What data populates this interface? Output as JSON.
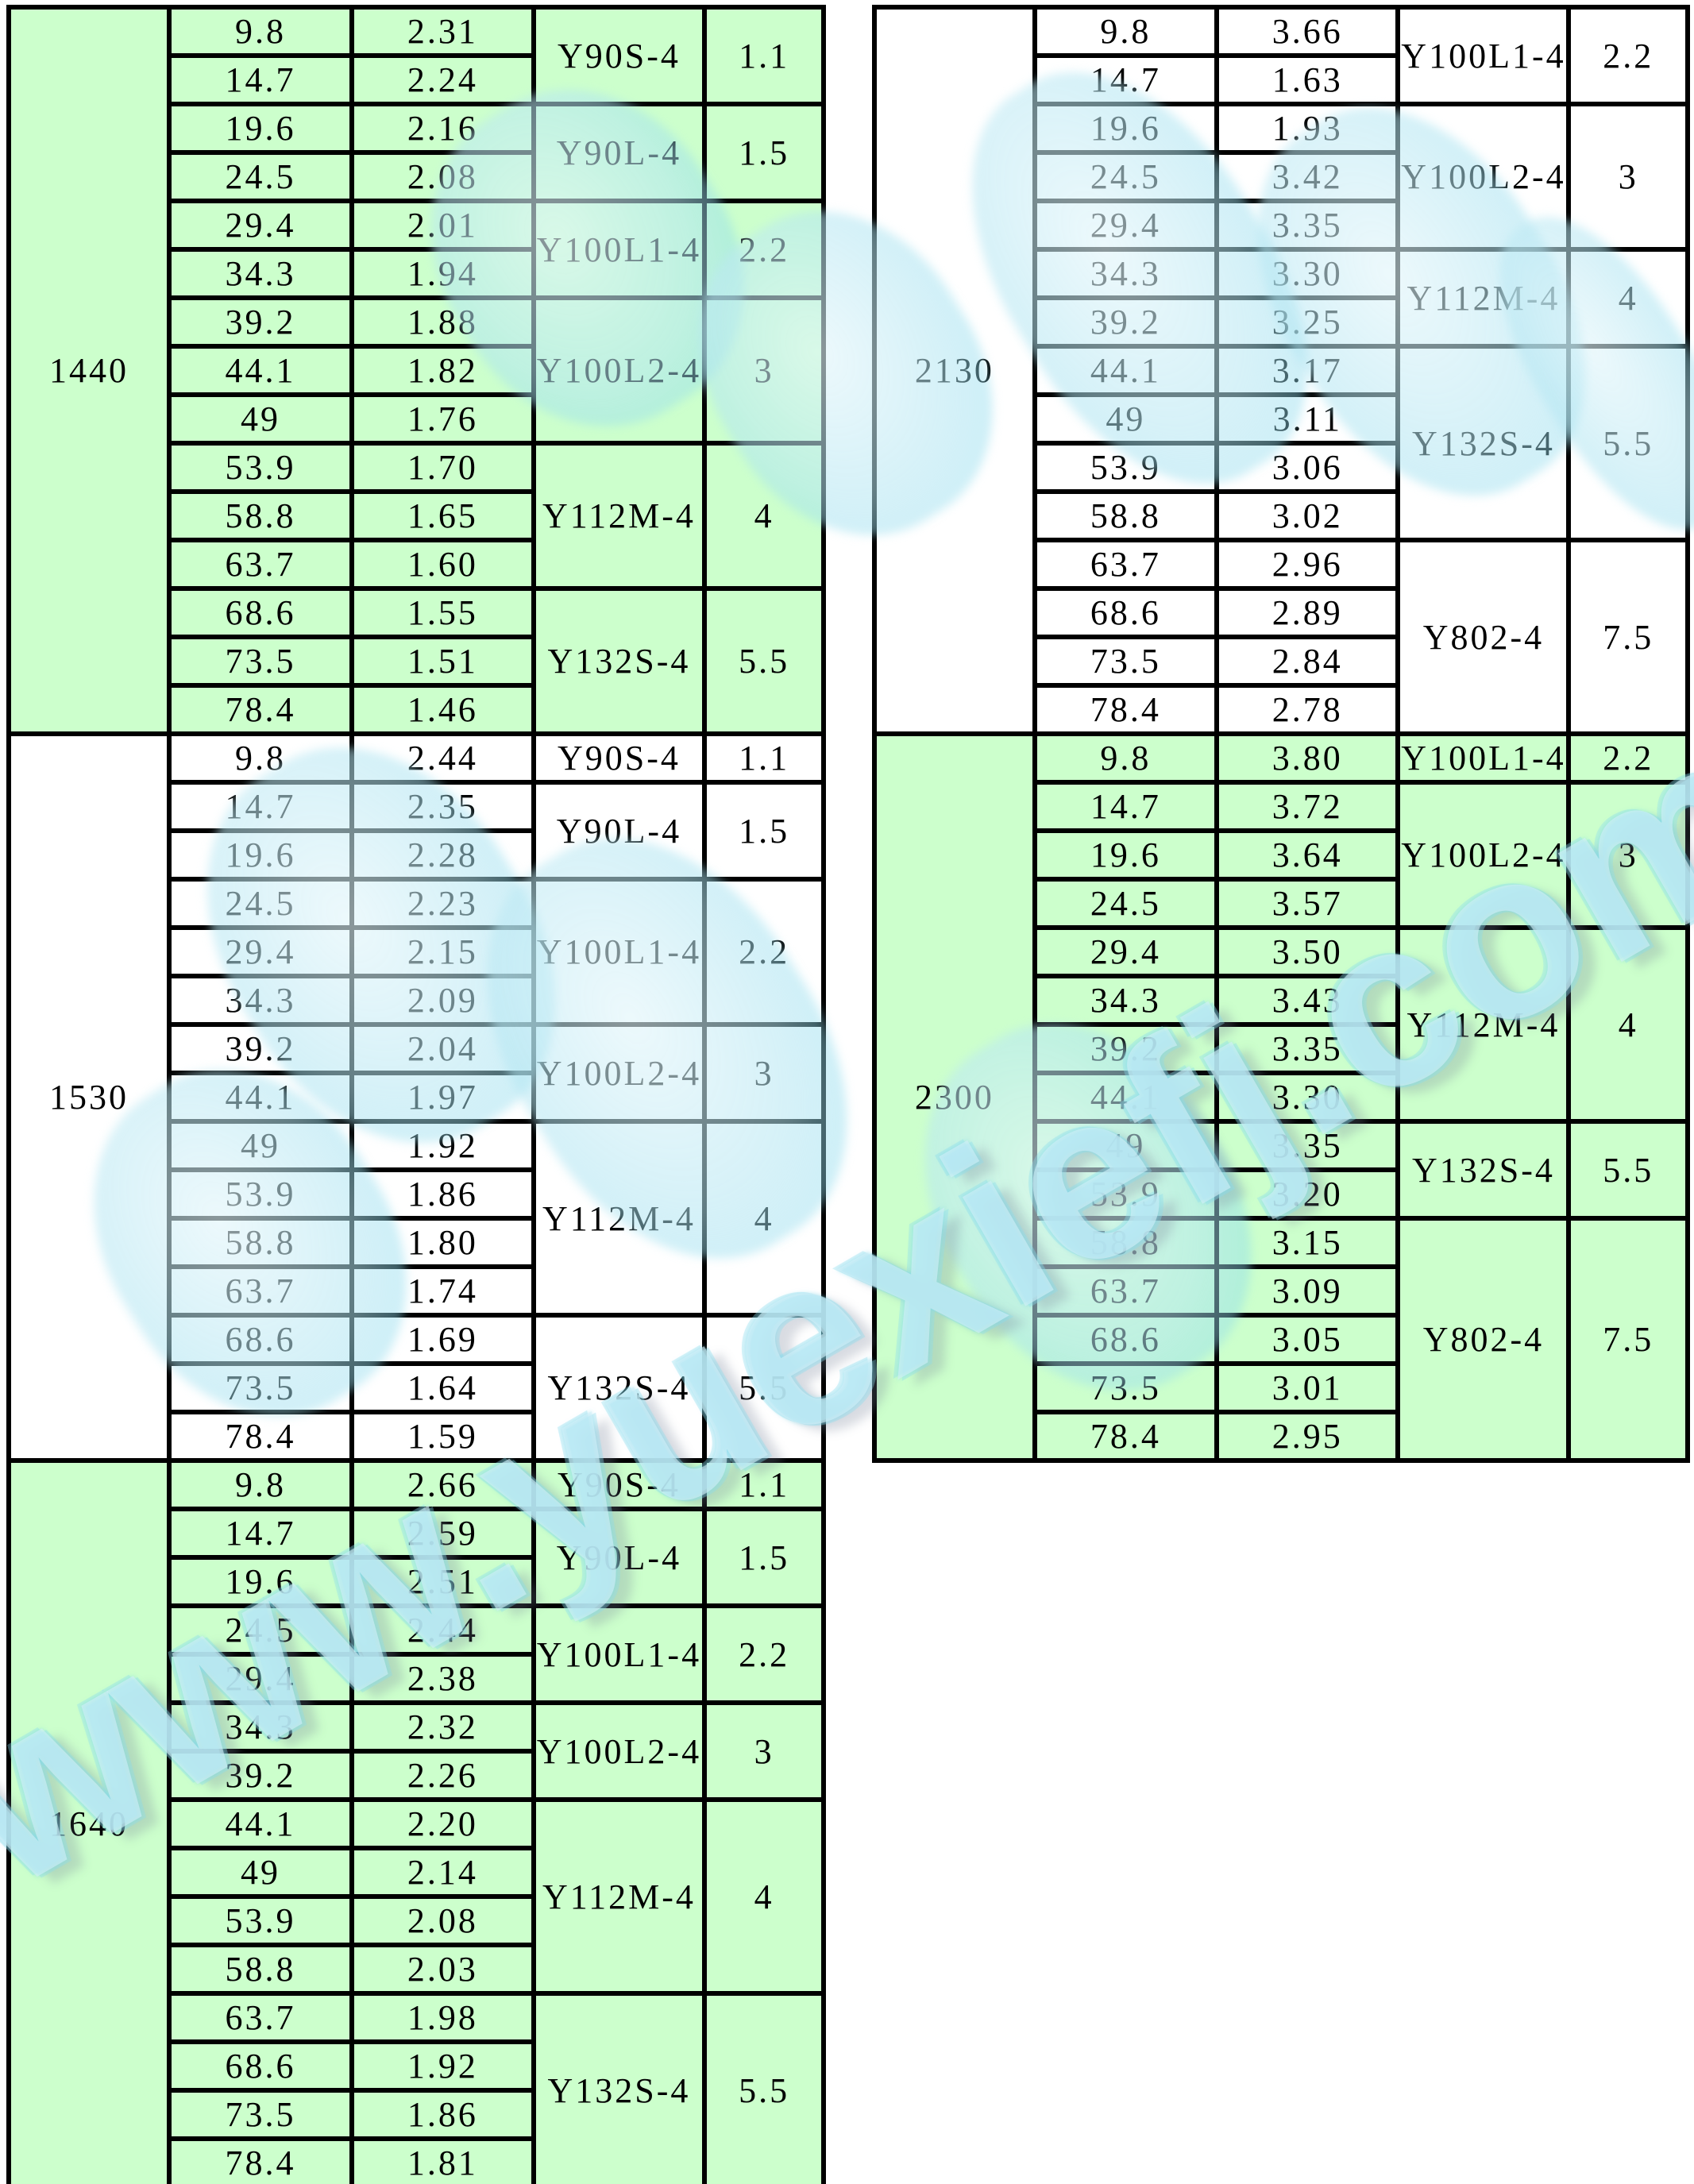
{
  "watermark": {
    "url_text": "www.yuexiefj.com",
    "color": "#7fd7e9"
  },
  "colors": {
    "green_fill": "#ccffcc",
    "white_fill": "#ffffff",
    "border": "#000000"
  },
  "column_fractions": [
    19.7,
    22.4,
    22.3,
    21.0,
    14.6
  ],
  "tables": [
    {
      "group_label": "1440",
      "column": "left",
      "background": "green",
      "rows": [
        [
          "9.8",
          "2.31"
        ],
        [
          "14.7",
          "2.24"
        ],
        [
          "19.6",
          "2.16"
        ],
        [
          "24.5",
          "2.08"
        ],
        [
          "29.4",
          "2.01"
        ],
        [
          "34.3",
          "1.94"
        ],
        [
          "39.2",
          "1.88"
        ],
        [
          "44.1",
          "1.82"
        ],
        [
          "49",
          "1.76"
        ],
        [
          "53.9",
          "1.70"
        ],
        [
          "58.8",
          "1.65"
        ],
        [
          "63.7",
          "1.60"
        ],
        [
          "68.6",
          "1.55"
        ],
        [
          "73.5",
          "1.51"
        ],
        [
          "78.4",
          "1.46"
        ]
      ],
      "motor_groups": [
        {
          "model": "Y90S-4",
          "power": "1.1",
          "rows": 2
        },
        {
          "model": "Y90L-4",
          "power": "1.5",
          "rows": 2
        },
        {
          "model": "Y100L1-4",
          "power": "2.2",
          "rows": 2
        },
        {
          "model": "Y100L2-4",
          "power": "3",
          "rows": 3
        },
        {
          "model": "Y112M-4",
          "power": "4",
          "rows": 3
        },
        {
          "model": "Y132S-4",
          "power": "5.5",
          "rows": 3
        }
      ]
    },
    {
      "group_label": "1530",
      "column": "left",
      "background": "white",
      "rows": [
        [
          "9.8",
          "2.44"
        ],
        [
          "14.7",
          "2.35"
        ],
        [
          "19.6",
          "2.28"
        ],
        [
          "24.5",
          "2.23"
        ],
        [
          "29.4",
          "2.15"
        ],
        [
          "34.3",
          "2.09"
        ],
        [
          "39.2",
          "2.04"
        ],
        [
          "44.1",
          "1.97"
        ],
        [
          "49",
          "1.92"
        ],
        [
          "53.9",
          "1.86"
        ],
        [
          "58.8",
          "1.80"
        ],
        [
          "63.7",
          "1.74"
        ],
        [
          "68.6",
          "1.69"
        ],
        [
          "73.5",
          "1.64"
        ],
        [
          "78.4",
          "1.59"
        ]
      ],
      "motor_groups": [
        {
          "model": "Y90S-4",
          "power": "1.1",
          "rows": 1
        },
        {
          "model": "Y90L-4",
          "power": "1.5",
          "rows": 2
        },
        {
          "model": "Y100L1-4",
          "power": "2.2",
          "rows": 3
        },
        {
          "model": "Y100L2-4",
          "power": "3",
          "rows": 2
        },
        {
          "model": "Y112M-4",
          "power": "4",
          "rows": 4
        },
        {
          "model": "Y132S-4",
          "power": "5.5",
          "rows": 3
        }
      ]
    },
    {
      "group_label": "1640",
      "column": "left",
      "background": "green",
      "rows": [
        [
          "9.8",
          "2.66"
        ],
        [
          "14.7",
          "2.59"
        ],
        [
          "19.6",
          "2.51"
        ],
        [
          "24.5",
          "2.44"
        ],
        [
          "29.4",
          "2.38"
        ],
        [
          "34.3",
          "2.32"
        ],
        [
          "39.2",
          "2.26"
        ],
        [
          "44.1",
          "2.20"
        ],
        [
          "49",
          "2.14"
        ],
        [
          "53.9",
          "2.08"
        ],
        [
          "58.8",
          "2.03"
        ],
        [
          "63.7",
          "1.98"
        ],
        [
          "68.6",
          "1.92"
        ],
        [
          "73.5",
          "1.86"
        ],
        [
          "78.4",
          "1.81"
        ]
      ],
      "motor_groups": [
        {
          "model": "Y90S-4",
          "power": "1.1",
          "rows": 1
        },
        {
          "model": "Y90L-4",
          "power": "1.5",
          "rows": 2
        },
        {
          "model": "Y100L1-4",
          "power": "2.2",
          "rows": 2
        },
        {
          "model": "Y100L2-4",
          "power": "3",
          "rows": 2
        },
        {
          "model": "Y112M-4",
          "power": "4",
          "rows": 4
        },
        {
          "model": "Y132S-4",
          "power": "5.5",
          "rows": 4
        }
      ]
    },
    {
      "group_label": "2130",
      "column": "right",
      "background": "white",
      "rows": [
        [
          "9.8",
          "3.66"
        ],
        [
          "14.7",
          "1.63"
        ],
        [
          "19.6",
          "1.93"
        ],
        [
          "24.5",
          "3.42"
        ],
        [
          "29.4",
          "3.35"
        ],
        [
          "34.3",
          "3.30"
        ],
        [
          "39.2",
          "3.25"
        ],
        [
          "44.1",
          "3.17"
        ],
        [
          "49",
          "3.11"
        ],
        [
          "53.9",
          "3.06"
        ],
        [
          "58.8",
          "3.02"
        ],
        [
          "63.7",
          "2.96"
        ],
        [
          "68.6",
          "2.89"
        ],
        [
          "73.5",
          "2.84"
        ],
        [
          "78.4",
          "2.78"
        ]
      ],
      "motor_groups": [
        {
          "model": "Y100L1-4",
          "power": "2.2",
          "rows": 2
        },
        {
          "model": "Y100L2-4",
          "power": "3",
          "rows": 3
        },
        {
          "model": "Y112M-4",
          "power": "4",
          "rows": 2
        },
        {
          "model": "Y132S-4",
          "power": "5.5",
          "rows": 4
        },
        {
          "model": "Y802-4",
          "power": "7.5",
          "rows": 4
        }
      ]
    },
    {
      "group_label": "2300",
      "column": "right",
      "background": "green",
      "rows": [
        [
          "9.8",
          "3.80"
        ],
        [
          "14.7",
          "3.72"
        ],
        [
          "19.6",
          "3.64"
        ],
        [
          "24.5",
          "3.57"
        ],
        [
          "29.4",
          "3.50"
        ],
        [
          "34.3",
          "3.43"
        ],
        [
          "39.2",
          "3.35"
        ],
        [
          "44.1",
          "3.30"
        ],
        [
          "49",
          "3.35"
        ],
        [
          "53.9",
          "3.20"
        ],
        [
          "58.8",
          "3.15"
        ],
        [
          "63.7",
          "3.09"
        ],
        [
          "68.6",
          "3.05"
        ],
        [
          "73.5",
          "3.01"
        ],
        [
          "78.4",
          "2.95"
        ]
      ],
      "motor_groups": [
        {
          "model": "Y100L1-4",
          "power": "2.2",
          "rows": 1
        },
        {
          "model": "Y100L2-4",
          "power": "3",
          "rows": 3
        },
        {
          "model": "Y112M-4",
          "power": "4",
          "rows": 4
        },
        {
          "model": "Y132S-4",
          "power": "5.5",
          "rows": 2
        },
        {
          "model": "Y802-4",
          "power": "7.5",
          "rows": 5
        }
      ]
    }
  ]
}
